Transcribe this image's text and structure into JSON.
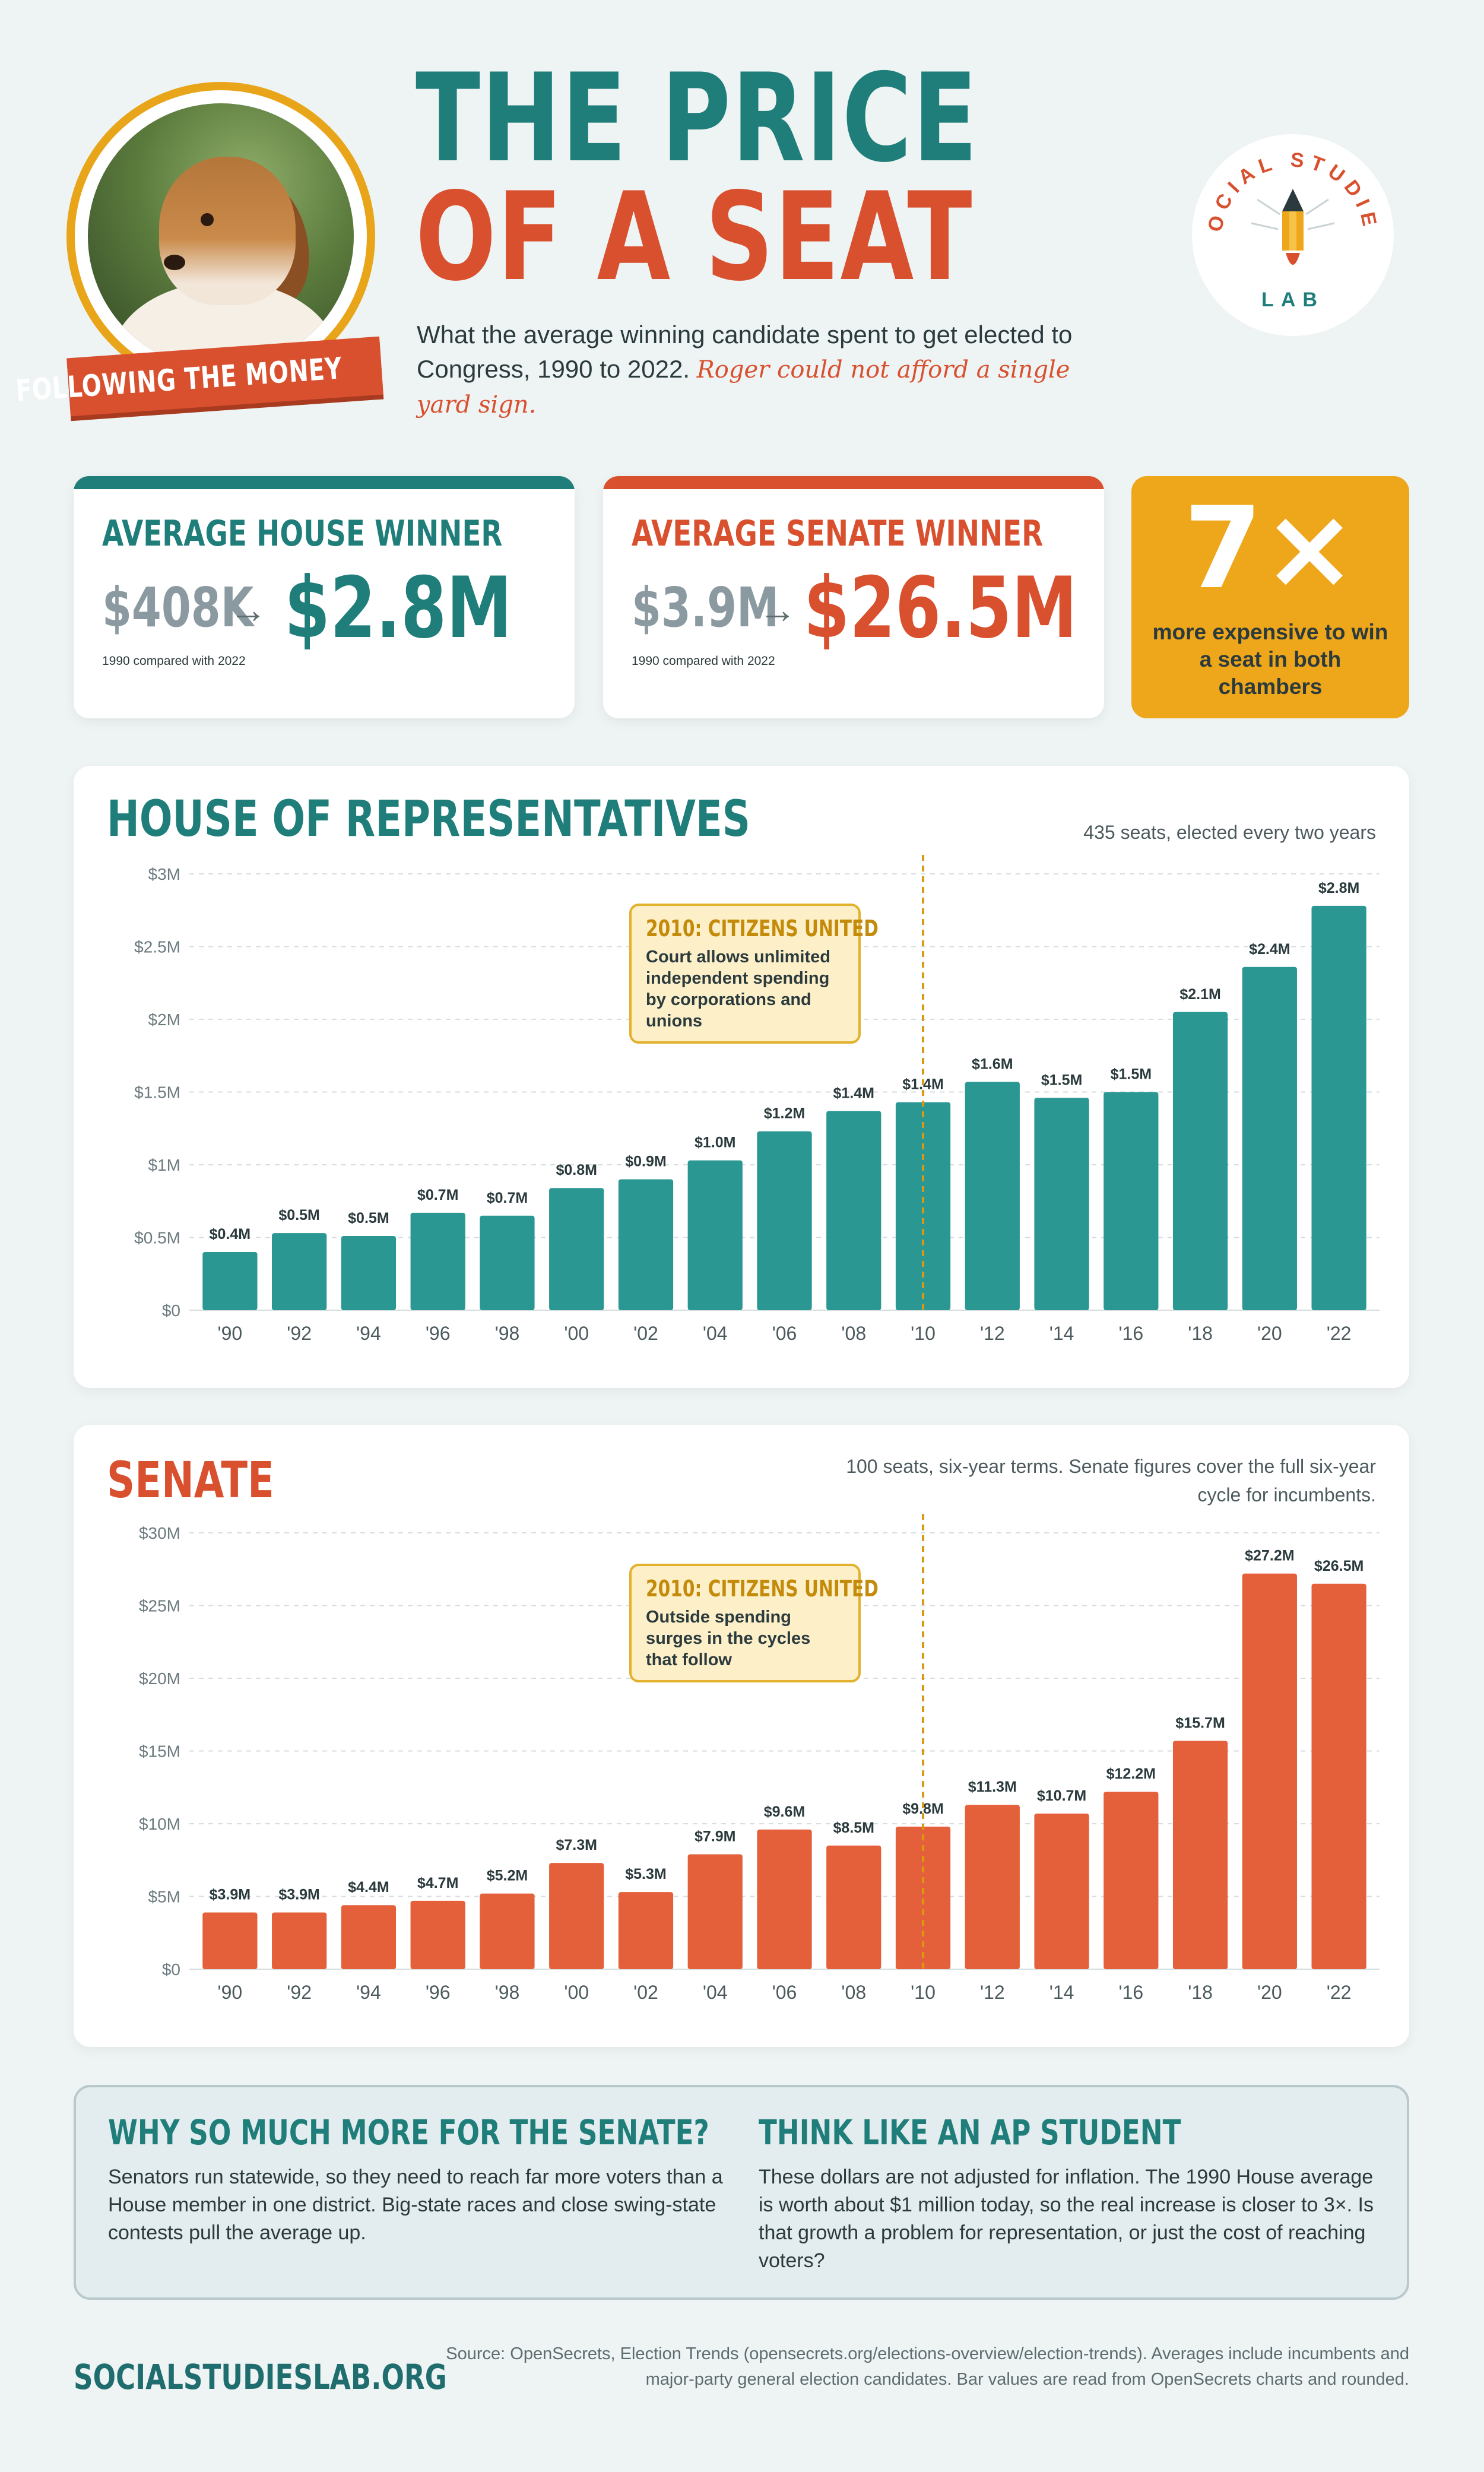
{
  "header": {
    "title_line1": "THE PRICE",
    "title_line2": "OF A SEAT",
    "subtitle": "What the average winning candidate spent to get elected to Congress, 1990 to 2022.",
    "aside": "Roger could not afford a single yard sign.",
    "ribbon": "FOLLOWING THE MONEY",
    "logo_top": "SOCIAL STUDIES",
    "logo_bottom": "LAB"
  },
  "stats": {
    "house": {
      "label": "AVERAGE HOUSE WINNER",
      "from": "$408K",
      "arrow": "→",
      "to": "$2.8M",
      "note": "1990 compared with 2022"
    },
    "senate": {
      "label": "AVERAGE SENATE WINNER",
      "from": "$3.9M",
      "arrow": "→",
      "to": "$26.5M",
      "note": "1990 compared with 2022"
    },
    "multiplier": {
      "value": "7×",
      "text": "more expensive to win a seat in both chambers"
    }
  },
  "colors": {
    "teal": "#1f7d7a",
    "bar_teal": "#2a9793",
    "orange": "#d9502f",
    "bar_orange": "#e4603b",
    "gold": "#eea71a"
  },
  "chart_data": [
    {
      "type": "bar",
      "title": "HOUSE OF REPRESENTATIVES",
      "note": "435 seats, elected every two years",
      "categories": [
        "'90",
        "'92",
        "'94",
        "'96",
        "'98",
        "'00",
        "'02",
        "'04",
        "'06",
        "'08",
        "'10",
        "'12",
        "'14",
        "'16",
        "'18",
        "'20",
        "'22"
      ],
      "values": [
        0.4,
        0.53,
        0.51,
        0.67,
        0.65,
        0.84,
        0.9,
        1.03,
        1.23,
        1.37,
        1.43,
        1.57,
        1.46,
        1.5,
        2.05,
        2.36,
        2.78
      ],
      "value_labels": [
        "$0.4M",
        "$0.5M",
        "$0.5M",
        "$0.7M",
        "$0.7M",
        "$0.8M",
        "$0.9M",
        "$1.0M",
        "$1.2M",
        "$1.4M",
        "$1.4M",
        "$1.6M",
        "$1.5M",
        "$1.5M",
        "$2.1M",
        "$2.4M",
        "$2.8M"
      ],
      "yticks": [
        0,
        0.5,
        1,
        1.5,
        2,
        2.5,
        3
      ],
      "ytick_labels": [
        "$0",
        "$0.5M",
        "$1M",
        "$1.5M",
        "$2M",
        "$2.5M",
        "$3M"
      ],
      "ylim": [
        0,
        3
      ],
      "grid": true,
      "marker_category": "'10",
      "callout": {
        "title": "2010: CITIZENS UNITED",
        "body": "Court allows unlimited independent spending by corporations and unions"
      }
    },
    {
      "type": "bar",
      "title": "SENATE",
      "note_line1": "100 seats, six-year terms. Senate figures cover the full six-year",
      "note_line2": "cycle for incumbents.",
      "categories": [
        "'90",
        "'92",
        "'94",
        "'96",
        "'98",
        "'00",
        "'02",
        "'04",
        "'06",
        "'08",
        "'10",
        "'12",
        "'14",
        "'16",
        "'18",
        "'20",
        "'22"
      ],
      "values": [
        3.9,
        3.9,
        4.4,
        4.7,
        5.2,
        7.3,
        5.3,
        7.9,
        9.6,
        8.5,
        9.8,
        11.3,
        10.7,
        12.2,
        15.7,
        27.2,
        26.5
      ],
      "value_labels": [
        "$3.9M",
        "$3.9M",
        "$4.4M",
        "$4.7M",
        "$5.2M",
        "$7.3M",
        "$5.3M",
        "$7.9M",
        "$9.6M",
        "$8.5M",
        "$9.8M",
        "$11.3M",
        "$10.7M",
        "$12.2M",
        "$15.7M",
        "$27.2M",
        "$26.5M"
      ],
      "yticks": [
        0,
        5,
        10,
        15,
        20,
        25,
        30
      ],
      "ytick_labels": [
        "$0",
        "$5M",
        "$10M",
        "$15M",
        "$20M",
        "$25M",
        "$30M"
      ],
      "ylim": [
        0,
        30
      ],
      "grid": true,
      "marker_category": "'10",
      "callout": {
        "title": "2010: CITIZENS UNITED",
        "body": "Outside spending surges in the cycles that follow"
      }
    }
  ],
  "info": {
    "left_title": "WHY SO MUCH MORE FOR THE SENATE?",
    "left_body": "Senators run statewide, so they need to reach far more voters than a House member in one district. Big-state races and close swing-state contests pull the average up.",
    "right_title": "THINK LIKE AN AP STUDENT",
    "right_body": "These dollars are not adjusted for inflation. The 1990 House average is worth about $1 million today, so the real increase is closer to 3×. Is that growth a problem for representation, or just the cost of reaching voters?"
  },
  "footer": {
    "brand": "SOCIALSTUDIESLAB.ORG",
    "source": "Source: OpenSecrets, Election Trends (opensecrets.org/elections-overview/election-trends). Averages include incumbents and major-party general election candidates. Bar values are read from OpenSecrets charts and rounded."
  }
}
